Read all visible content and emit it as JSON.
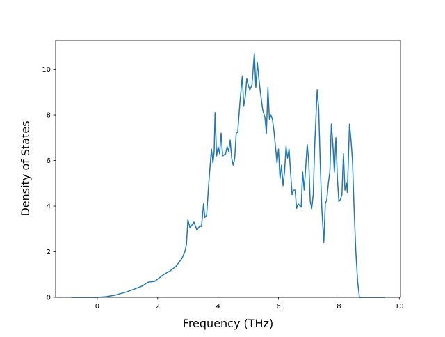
{
  "chart_data": {
    "type": "line",
    "x_label": "Frequency (THz)",
    "y_label": "Density of States",
    "xlim": [
      -1.38,
      10.04
    ],
    "ylim": [
      0,
      11.27
    ],
    "xticks": [
      0,
      2,
      4,
      6,
      8,
      10
    ],
    "yticks": [
      0,
      2,
      4,
      6,
      8,
      10
    ],
    "series": [
      {
        "color": "#1f77b4",
        "x": [
          -0.86,
          0,
          0.3,
          0.6,
          1.0,
          1.3,
          1.5,
          1.6,
          1.7,
          1.9,
          2.0,
          2.2,
          2.4,
          2.6,
          2.8,
          2.9,
          2.95,
          3.0,
          3.07,
          3.2,
          3.3,
          3.4,
          3.45,
          3.52,
          3.56,
          3.62,
          3.68,
          3.72,
          3.78,
          3.83,
          3.87,
          3.9,
          3.95,
          4.0,
          4.05,
          4.1,
          4.15,
          4.25,
          4.3,
          4.35,
          4.4,
          4.45,
          4.5,
          4.55,
          4.6,
          4.65,
          4.72,
          4.8,
          4.85,
          4.9,
          4.95,
          5.0,
          5.05,
          5.12,
          5.2,
          5.25,
          5.3,
          5.35,
          5.4,
          5.48,
          5.55,
          5.6,
          5.65,
          5.7,
          5.75,
          5.8,
          5.85,
          5.9,
          5.95,
          6.0,
          6.05,
          6.1,
          6.15,
          6.2,
          6.25,
          6.3,
          6.35,
          6.4,
          6.45,
          6.5,
          6.55,
          6.6,
          6.65,
          6.75,
          6.8,
          6.85,
          6.95,
          7.0,
          7.05,
          7.1,
          7.15,
          7.2,
          7.28,
          7.33,
          7.38,
          7.43,
          7.5,
          7.55,
          7.6,
          7.65,
          7.7,
          7.75,
          7.8,
          7.85,
          7.9,
          7.95,
          8.0,
          8.05,
          8.1,
          8.15,
          8.2,
          8.25,
          8.28,
          8.35,
          8.4,
          8.45,
          8.5,
          8.56,
          8.62,
          8.68,
          9.52
        ],
        "values": [
          0,
          0,
          0.03,
          0.1,
          0.25,
          0.4,
          0.5,
          0.6,
          0.67,
          0.7,
          0.8,
          1.0,
          1.15,
          1.35,
          1.7,
          2.0,
          2.3,
          3.4,
          3.05,
          3.3,
          2.95,
          3.15,
          3.1,
          4.1,
          3.5,
          3.6,
          4.8,
          5.5,
          6.5,
          5.9,
          6.4,
          8.1,
          6.2,
          6.6,
          6.3,
          7.2,
          6.2,
          6.3,
          6.6,
          6.4,
          6.9,
          6.1,
          5.8,
          6.1,
          7.2,
          7.25,
          8.5,
          9.7,
          8.4,
          8.8,
          9.6,
          9.3,
          9.1,
          9.3,
          10.7,
          9.2,
          10.3,
          9.6,
          9.0,
          8.2,
          7.9,
          7.2,
          9.2,
          7.8,
          8.0,
          7.8,
          7.3,
          6.6,
          5.9,
          6.5,
          5.2,
          5.8,
          4.9,
          5.5,
          6.6,
          6.1,
          6.5,
          5.5,
          4.5,
          4.7,
          4.7,
          3.9,
          4.1,
          3.95,
          5.5,
          4.7,
          6.7,
          6.0,
          4.2,
          3.9,
          4.5,
          6.7,
          9.1,
          8.3,
          6.0,
          4.0,
          2.4,
          4.1,
          4.3,
          5.0,
          5.5,
          7.6,
          6.7,
          5.5,
          7.0,
          5.2,
          4.2,
          4.3,
          4.5,
          6.3,
          4.7,
          5.0,
          4.6,
          7.6,
          6.9,
          6.0,
          4.0,
          2.0,
          0.7,
          0,
          0
        ]
      }
    ]
  }
}
